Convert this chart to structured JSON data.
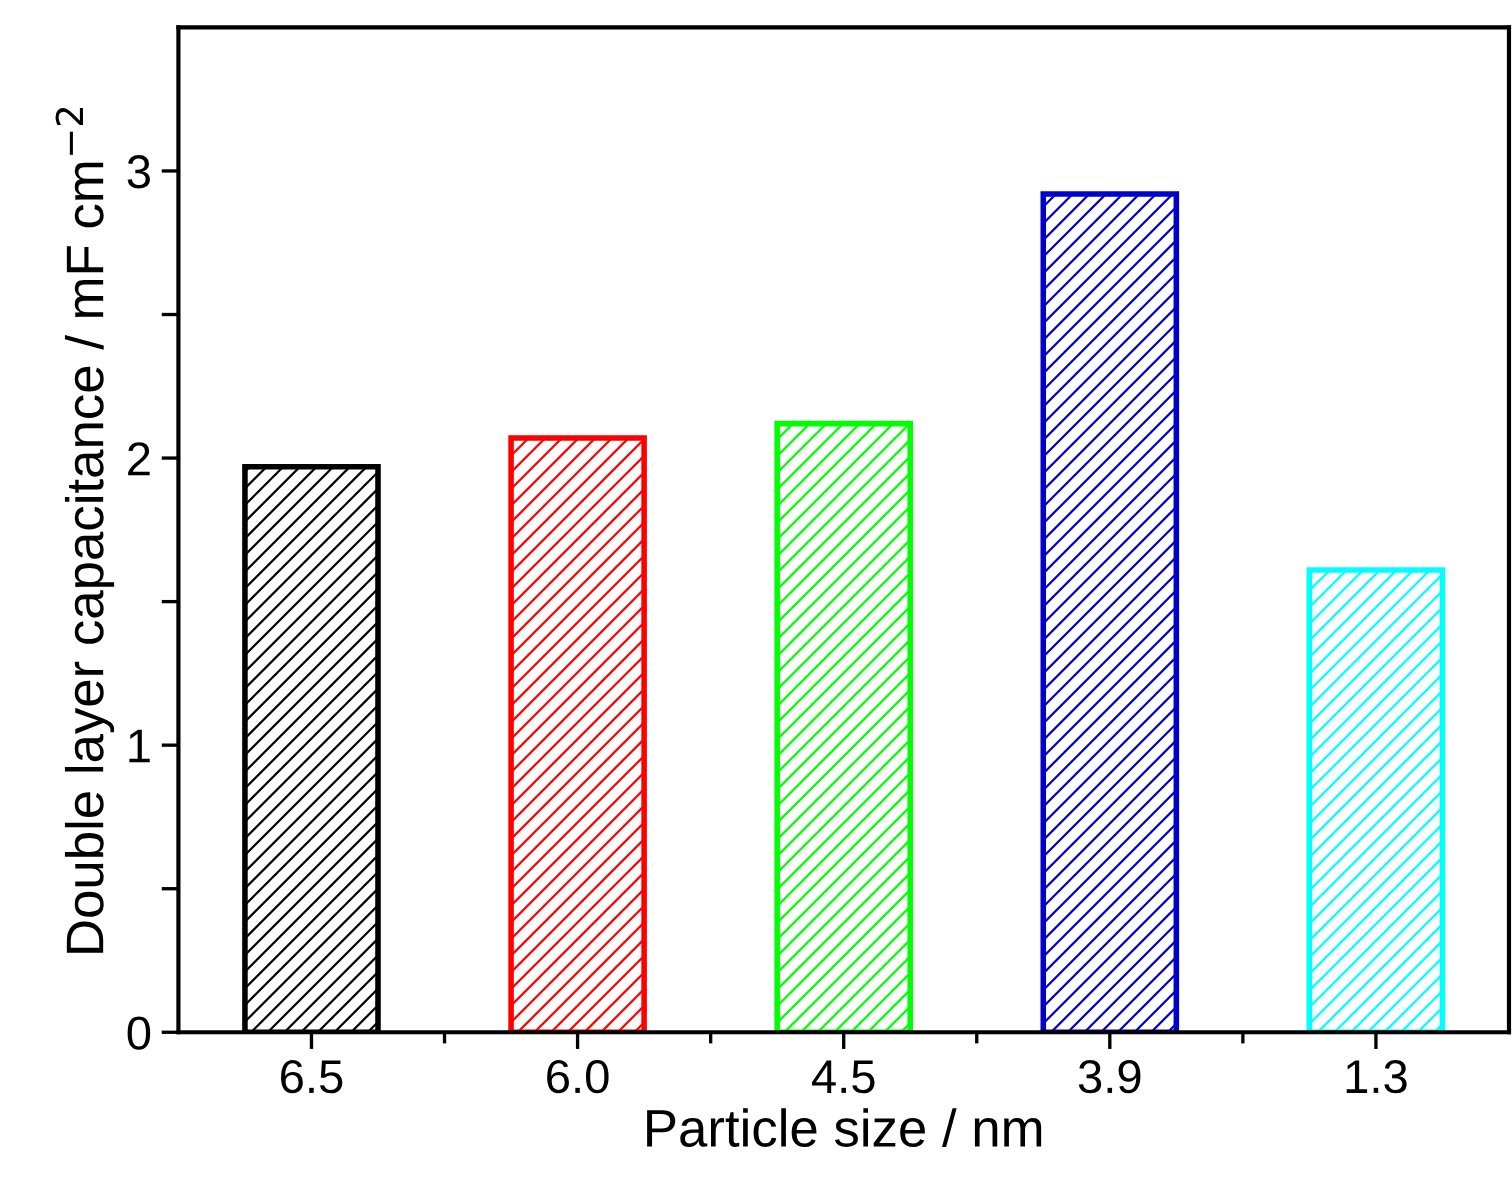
{
  "chart_data": {
    "type": "bar",
    "xlabel": "Particle size / nm",
    "ylabel": "Double layer capacitance / mF cm$^{−2}$",
    "categories": [
      "6.5",
      "6.0",
      "4.5",
      "3.9",
      "1.3"
    ],
    "values": [
      1.97,
      2.07,
      2.12,
      2.92,
      1.61
    ],
    "colors": [
      "#000000",
      "#ff0000",
      "#00ff00",
      "#0000cc",
      "#00ffff"
    ],
    "ylim": [
      0,
      3.5
    ],
    "yticks": [
      0,
      {
        "value": 0.5,
        "label": null
      },
      1,
      {
        "value": 1.5,
        "label": null
      },
      2,
      {
        "value": 2.5,
        "label": null
      },
      3
    ],
    "grid": false,
    "legend": false
  }
}
